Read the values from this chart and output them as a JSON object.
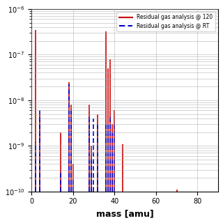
{
  "title": "",
  "xlabel": "mass [amu]",
  "ylabel": "",
  "xlim": [
    0,
    90
  ],
  "legend_red": "Residual gas analysis @ 120",
  "legend_blue": "Residual gas analysis @ RT",
  "red_color": "#cc0000",
  "blue_color": "#0000cc",
  "background_color": "#ffffff",
  "grid_color": "#aaaaaa",
  "base_val": 1e-10,
  "ymin": 1e-10,
  "ymax": 1e-06,
  "red_peaks": [
    {
      "mass": 2,
      "peak": 3.5e-07
    },
    {
      "mass": 4,
      "peak": 5e-09
    },
    {
      "mass": 14,
      "peak": 2e-09
    },
    {
      "mass": 18,
      "peak": 2.5e-08
    },
    {
      "mass": 19,
      "peak": 8e-09
    },
    {
      "mass": 20,
      "peak": 4e-10
    },
    {
      "mass": 28,
      "peak": 8e-09
    },
    {
      "mass": 29,
      "peak": 1e-09
    },
    {
      "mass": 32,
      "peak": 5e-09
    },
    {
      "mass": 36,
      "peak": 3.2e-07
    },
    {
      "mass": 37,
      "peak": 5e-08
    },
    {
      "mass": 38,
      "peak": 8e-08
    },
    {
      "mass": 39,
      "peak": 3e-09
    },
    {
      "mass": 40,
      "peak": 6e-09
    },
    {
      "mass": 44,
      "peak": 1.1e-09
    },
    {
      "mass": 70,
      "peak": 1.1e-10
    }
  ],
  "blue_peaks": [
    {
      "mass": 2,
      "peak": 1.2e-09
    },
    {
      "mass": 4,
      "peak": 6e-09
    },
    {
      "mass": 14,
      "peak": 3e-10
    },
    {
      "mass": 18,
      "peak": 2.2e-08
    },
    {
      "mass": 19,
      "peak": 6e-09
    },
    {
      "mass": 20,
      "peak": 2e-10
    },
    {
      "mass": 28,
      "peak": 4.5e-09
    },
    {
      "mass": 29,
      "peak": 6e-10
    },
    {
      "mass": 30,
      "peak": 4e-09
    },
    {
      "mass": 32,
      "peak": 3e-09
    },
    {
      "mass": 36,
      "peak": 3e-09
    },
    {
      "mass": 37,
      "peak": 3e-09
    },
    {
      "mass": 38,
      "peak": 5e-09
    },
    {
      "mass": 39,
      "peak": 2e-09
    },
    {
      "mass": 40,
      "peak": 3e-09
    }
  ]
}
